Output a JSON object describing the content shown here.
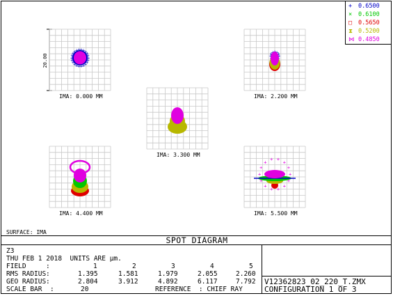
{
  "legend": [
    {
      "symbol": "+",
      "wavelength": "0.6500",
      "color": "#0000c8"
    },
    {
      "symbol": "×",
      "wavelength": "0.6100",
      "color": "#00c800"
    },
    {
      "symbol": "□",
      "wavelength": "0.5650",
      "color": "#e00000"
    },
    {
      "symbol": "⧗",
      "wavelength": "0.5200",
      "color": "#b8b800"
    },
    {
      "symbol": "⋈",
      "wavelength": "0.4850",
      "color": "#e000e0"
    }
  ],
  "scale_bar_label": "20.00",
  "fields": [
    {
      "label": "IMA: 0.000 MM"
    },
    {
      "label": "IMA: 2.200 MM"
    },
    {
      "label": "IMA: 3.300 MM"
    },
    {
      "label": "IMA: 4.400 MM"
    },
    {
      "label": "IMA: 5.500 MM"
    }
  ],
  "surface": "SURFACE: IMA",
  "title": "SPOT DIAGRAM",
  "info": {
    "name": "Z3",
    "date_units": "THU FEB 1 2018  UNITS ARE µm.",
    "field_label": "FIELD",
    "field_values": [
      "1",
      "2",
      "3",
      "4",
      "5"
    ],
    "rms_label": "RMS RADIUS",
    "rms_values": [
      "1.395",
      "1.581",
      "1.979",
      "2.055",
      "2.260"
    ],
    "geo_label": "GEO RADIUS",
    "geo_values": [
      "2.804",
      "3.912",
      "4.892",
      "6.117",
      "7.792"
    ],
    "scale_label": "SCALE BAR",
    "scale_value": "20",
    "reference": "REFERENCE  : CHIEF RAY"
  },
  "filename": "V12362823_02_220_T.ZMX",
  "configuration": "CONFIGURATION 1 OF 3"
}
